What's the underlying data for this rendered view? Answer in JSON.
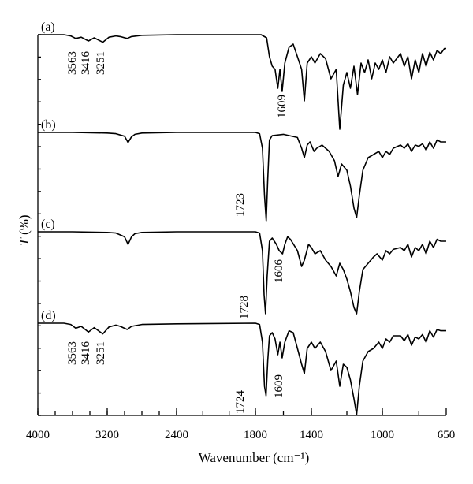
{
  "chart_data": {
    "type": "line",
    "title": "",
    "xlabel": "Wavenumber (cm⁻¹)",
    "ylabel_main": "T",
    "ylabel_unit": " (%)",
    "xlim": [
      4000,
      650
    ],
    "x_ticks": [
      4000,
      3200,
      2400,
      1800,
      1400,
      1000,
      650
    ],
    "x_tick_labels": [
      "4000",
      "3200",
      "2400",
      "1800",
      "1400",
      "1000",
      "650"
    ],
    "y_ticks_count": 18,
    "grid": false,
    "legend": "none",
    "series": [
      {
        "name": "(a)",
        "points": [
          [
            4000,
            0
          ],
          [
            3700,
            0
          ],
          [
            3620,
            -0.02
          ],
          [
            3563,
            -0.06
          ],
          [
            3500,
            -0.04
          ],
          [
            3416,
            -0.1
          ],
          [
            3350,
            -0.05
          ],
          [
            3251,
            -0.12
          ],
          [
            3180,
            -0.04
          ],
          [
            3100,
            -0.02
          ],
          [
            3050,
            -0.03
          ],
          [
            2970,
            -0.06
          ],
          [
            2920,
            -0.03
          ],
          [
            2800,
            -0.01
          ],
          [
            2400,
            0
          ],
          [
            1800,
            0
          ],
          [
            1760,
            0
          ],
          [
            1720,
            -0.05
          ],
          [
            1700,
            -0.35
          ],
          [
            1680,
            -0.5
          ],
          [
            1660,
            -0.55
          ],
          [
            1640,
            -0.85
          ],
          [
            1625,
            -0.55
          ],
          [
            1609,
            -0.9
          ],
          [
            1590,
            -0.45
          ],
          [
            1560,
            -0.2
          ],
          [
            1530,
            -0.15
          ],
          [
            1500,
            -0.35
          ],
          [
            1470,
            -0.55
          ],
          [
            1450,
            -1.05
          ],
          [
            1430,
            -0.45
          ],
          [
            1400,
            -0.35
          ],
          [
            1380,
            -0.45
          ],
          [
            1350,
            -0.3
          ],
          [
            1320,
            -0.38
          ],
          [
            1290,
            -0.7
          ],
          [
            1260,
            -0.55
          ],
          [
            1240,
            -1.5
          ],
          [
            1220,
            -0.8
          ],
          [
            1200,
            -0.6
          ],
          [
            1180,
            -0.85
          ],
          [
            1160,
            -0.5
          ],
          [
            1140,
            -0.95
          ],
          [
            1120,
            -0.45
          ],
          [
            1100,
            -0.6
          ],
          [
            1080,
            -0.4
          ],
          [
            1060,
            -0.7
          ],
          [
            1040,
            -0.45
          ],
          [
            1020,
            -0.55
          ],
          [
            1000,
            -0.4
          ],
          [
            980,
            -0.6
          ],
          [
            960,
            -0.35
          ],
          [
            940,
            -0.45
          ],
          [
            900,
            -0.3
          ],
          [
            880,
            -0.5
          ],
          [
            860,
            -0.35
          ],
          [
            840,
            -0.7
          ],
          [
            820,
            -0.4
          ],
          [
            800,
            -0.6
          ],
          [
            780,
            -0.3
          ],
          [
            760,
            -0.5
          ],
          [
            740,
            -0.28
          ],
          [
            720,
            -0.4
          ],
          [
            700,
            -0.25
          ],
          [
            680,
            -0.3
          ],
          [
            660,
            -0.22
          ],
          [
            650,
            -0.22
          ]
        ]
      },
      {
        "name": "(b)",
        "points": [
          [
            4000,
            0
          ],
          [
            3600,
            0
          ],
          [
            3200,
            -0.01
          ],
          [
            3100,
            -0.02
          ],
          [
            3000,
            -0.06
          ],
          [
            2960,
            -0.16
          ],
          [
            2920,
            -0.07
          ],
          [
            2880,
            -0.03
          ],
          [
            2800,
            -0.01
          ],
          [
            2400,
            0
          ],
          [
            1800,
            0
          ],
          [
            1770,
            -0.02
          ],
          [
            1750,
            -0.25
          ],
          [
            1735,
            -1.0
          ],
          [
            1723,
            -1.4
          ],
          [
            1712,
            -0.75
          ],
          [
            1700,
            -0.12
          ],
          [
            1680,
            -0.05
          ],
          [
            1600,
            -0.03
          ],
          [
            1500,
            -0.08
          ],
          [
            1470,
            -0.25
          ],
          [
            1450,
            -0.4
          ],
          [
            1430,
            -0.2
          ],
          [
            1410,
            -0.15
          ],
          [
            1385,
            -0.3
          ],
          [
            1370,
            -0.25
          ],
          [
            1340,
            -0.2
          ],
          [
            1300,
            -0.3
          ],
          [
            1270,
            -0.45
          ],
          [
            1250,
            -0.7
          ],
          [
            1230,
            -0.5
          ],
          [
            1200,
            -0.6
          ],
          [
            1180,
            -0.85
          ],
          [
            1160,
            -1.2
          ],
          [
            1145,
            -1.35
          ],
          [
            1130,
            -1.0
          ],
          [
            1110,
            -0.6
          ],
          [
            1080,
            -0.4
          ],
          [
            1050,
            -0.35
          ],
          [
            1020,
            -0.3
          ],
          [
            1000,
            -0.4
          ],
          [
            980,
            -0.3
          ],
          [
            960,
            -0.35
          ],
          [
            940,
            -0.25
          ],
          [
            900,
            -0.2
          ],
          [
            880,
            -0.25
          ],
          [
            860,
            -0.18
          ],
          [
            840,
            -0.3
          ],
          [
            820,
            -0.2
          ],
          [
            800,
            -0.22
          ],
          [
            780,
            -0.18
          ],
          [
            760,
            -0.28
          ],
          [
            740,
            -0.15
          ],
          [
            720,
            -0.25
          ],
          [
            700,
            -0.12
          ],
          [
            680,
            -0.15
          ],
          [
            650,
            -0.15
          ]
        ]
      },
      {
        "name": "(c)",
        "points": [
          [
            4000,
            0
          ],
          [
            3600,
            0
          ],
          [
            3200,
            -0.01
          ],
          [
            3100,
            -0.02
          ],
          [
            3000,
            -0.08
          ],
          [
            2960,
            -0.2
          ],
          [
            2920,
            -0.08
          ],
          [
            2880,
            -0.03
          ],
          [
            2800,
            -0.01
          ],
          [
            2400,
            0
          ],
          [
            1800,
            0
          ],
          [
            1770,
            -0.02
          ],
          [
            1750,
            -0.3
          ],
          [
            1738,
            -1.0
          ],
          [
            1728,
            -1.3
          ],
          [
            1716,
            -0.7
          ],
          [
            1700,
            -0.15
          ],
          [
            1680,
            -0.1
          ],
          [
            1650,
            -0.2
          ],
          [
            1630,
            -0.3
          ],
          [
            1606,
            -0.35
          ],
          [
            1590,
            -0.2
          ],
          [
            1570,
            -0.08
          ],
          [
            1550,
            -0.12
          ],
          [
            1500,
            -0.3
          ],
          [
            1470,
            -0.55
          ],
          [
            1450,
            -0.45
          ],
          [
            1420,
            -0.2
          ],
          [
            1400,
            -0.25
          ],
          [
            1380,
            -0.35
          ],
          [
            1350,
            -0.3
          ],
          [
            1320,
            -0.45
          ],
          [
            1290,
            -0.55
          ],
          [
            1260,
            -0.7
          ],
          [
            1240,
            -0.5
          ],
          [
            1220,
            -0.6
          ],
          [
            1200,
            -0.75
          ],
          [
            1180,
            -0.95
          ],
          [
            1160,
            -1.2
          ],
          [
            1145,
            -1.3
          ],
          [
            1130,
            -0.95
          ],
          [
            1110,
            -0.6
          ],
          [
            1080,
            -0.5
          ],
          [
            1050,
            -0.4
          ],
          [
            1030,
            -0.35
          ],
          [
            1000,
            -0.45
          ],
          [
            980,
            -0.3
          ],
          [
            960,
            -0.35
          ],
          [
            940,
            -0.28
          ],
          [
            900,
            -0.25
          ],
          [
            880,
            -0.3
          ],
          [
            860,
            -0.2
          ],
          [
            840,
            -0.4
          ],
          [
            820,
            -0.25
          ],
          [
            800,
            -0.3
          ],
          [
            780,
            -0.2
          ],
          [
            760,
            -0.35
          ],
          [
            740,
            -0.15
          ],
          [
            720,
            -0.25
          ],
          [
            700,
            -0.12
          ],
          [
            680,
            -0.15
          ],
          [
            650,
            -0.15
          ]
        ]
      },
      {
        "name": "(d)",
        "points": [
          [
            4000,
            0
          ],
          [
            3700,
            0
          ],
          [
            3620,
            -0.02
          ],
          [
            3563,
            -0.08
          ],
          [
            3500,
            -0.05
          ],
          [
            3416,
            -0.14
          ],
          [
            3350,
            -0.07
          ],
          [
            3251,
            -0.17
          ],
          [
            3180,
            -0.06
          ],
          [
            3100,
            -0.03
          ],
          [
            3050,
            -0.05
          ],
          [
            2970,
            -0.1
          ],
          [
            2920,
            -0.05
          ],
          [
            2800,
            -0.02
          ],
          [
            2400,
            -0.01
          ],
          [
            1800,
            0
          ],
          [
            1770,
            -0.02
          ],
          [
            1750,
            -0.3
          ],
          [
            1735,
            -1.0
          ],
          [
            1724,
            -1.15
          ],
          [
            1712,
            -0.6
          ],
          [
            1700,
            -0.2
          ],
          [
            1680,
            -0.15
          ],
          [
            1660,
            -0.25
          ],
          [
            1640,
            -0.5
          ],
          [
            1625,
            -0.3
          ],
          [
            1609,
            -0.55
          ],
          [
            1590,
            -0.3
          ],
          [
            1560,
            -0.12
          ],
          [
            1530,
            -0.15
          ],
          [
            1500,
            -0.4
          ],
          [
            1470,
            -0.65
          ],
          [
            1450,
            -0.8
          ],
          [
            1430,
            -0.4
          ],
          [
            1400,
            -0.3
          ],
          [
            1380,
            -0.4
          ],
          [
            1350,
            -0.3
          ],
          [
            1320,
            -0.45
          ],
          [
            1290,
            -0.75
          ],
          [
            1260,
            -0.6
          ],
          [
            1240,
            -1.0
          ],
          [
            1220,
            -0.65
          ],
          [
            1200,
            -0.7
          ],
          [
            1180,
            -0.9
          ],
          [
            1160,
            -1.2
          ],
          [
            1145,
            -1.45
          ],
          [
            1130,
            -1.0
          ],
          [
            1110,
            -0.6
          ],
          [
            1080,
            -0.45
          ],
          [
            1050,
            -0.4
          ],
          [
            1020,
            -0.3
          ],
          [
            1000,
            -0.4
          ],
          [
            980,
            -0.25
          ],
          [
            960,
            -0.3
          ],
          [
            940,
            -0.2
          ],
          [
            900,
            -0.2
          ],
          [
            880,
            -0.28
          ],
          [
            860,
            -0.18
          ],
          [
            840,
            -0.35
          ],
          [
            820,
            -0.22
          ],
          [
            800,
            -0.25
          ],
          [
            780,
            -0.18
          ],
          [
            760,
            -0.3
          ],
          [
            740,
            -0.12
          ],
          [
            720,
            -0.22
          ],
          [
            700,
            -0.1
          ],
          [
            680,
            -0.12
          ],
          [
            650,
            -0.12
          ]
        ]
      }
    ],
    "annotations": [
      {
        "series": "(a)",
        "label": "3563"
      },
      {
        "series": "(a)",
        "label": "3416"
      },
      {
        "series": "(a)",
        "label": "3251"
      },
      {
        "series": "(a)",
        "label": "1609"
      },
      {
        "series": "(b)",
        "label": "1723"
      },
      {
        "series": "(c)",
        "label": "1728"
      },
      {
        "series": "(c)",
        "label": "1606"
      },
      {
        "series": "(d)",
        "label": "3563"
      },
      {
        "series": "(d)",
        "label": "3416"
      },
      {
        "series": "(d)",
        "label": "3251"
      },
      {
        "series": "(d)",
        "label": "1724"
      },
      {
        "series": "(d)",
        "label": "1609"
      }
    ]
  }
}
